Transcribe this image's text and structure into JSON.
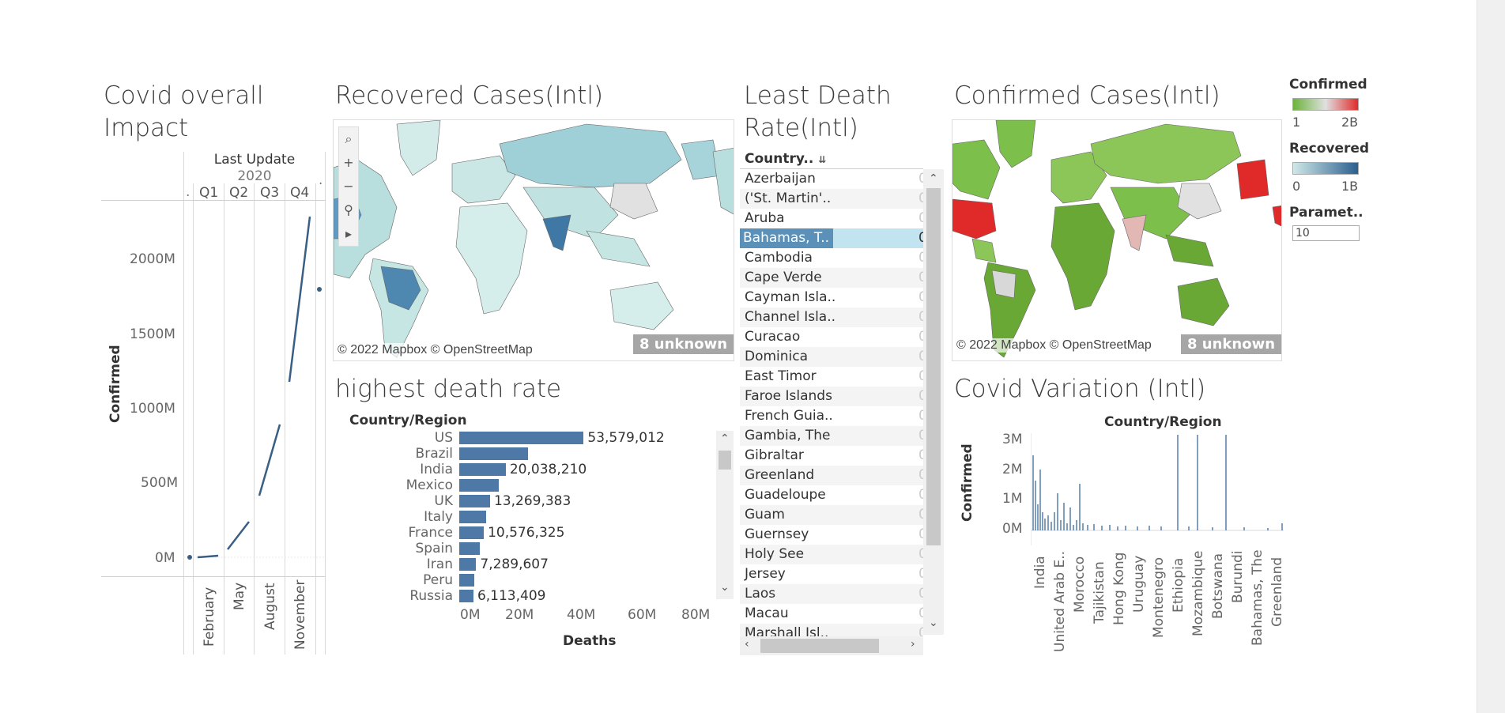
{
  "panels": {
    "overall": {
      "title_line1": "Covid overall",
      "title_line2": "Impact",
      "header": "Last Update",
      "year": "2020",
      "quarters": [
        "Q1",
        "Q2",
        "Q3",
        "Q4"
      ],
      "ylabel": "Confirmed",
      "yticks": [
        "2000M",
        "1500M",
        "1000M",
        "500M",
        "0M"
      ],
      "months": [
        "February",
        "May",
        "August",
        "November"
      ],
      "dot_labels": [
        ".",
        "."
      ]
    },
    "recovered": {
      "title": "Recovered Cases(Intl)",
      "copyright": "© 2022 Mapbox © OpenStreetMap",
      "unknown": "8 unknown",
      "tools": [
        "⌕",
        "+",
        "−",
        "⚲",
        "▸"
      ]
    },
    "death": {
      "title": "highest death rate",
      "axis_header": "Country/Region",
      "xlabel": "Deaths",
      "xticks": [
        "0M",
        "20M",
        "40M",
        "60M",
        "80M"
      ],
      "value_labels": [
        "53,579,012",
        "",
        "20,038,210",
        "",
        "13,269,383",
        "",
        "10,576,325",
        "",
        "7,289,607",
        "",
        "6,113,409"
      ]
    },
    "least": {
      "title_line1": "Least Death",
      "title_line2": "Rate(Intl)",
      "header": "Country..",
      "sort_icon": "⇊",
      "rows": [
        "Azerbaijan",
        "('St. Martin'..",
        "Aruba",
        "Bahamas, T..",
        "Cambodia",
        "Cape Verde",
        "Cayman Isla..",
        "Channel Isla..",
        "Curacao",
        "Dominica",
        "East Timor",
        "Faroe Islands",
        "French Guia..",
        "Gambia, The",
        "Gibraltar",
        "Greenland",
        "Guadeloupe",
        "Guam",
        "Guernsey",
        "Holy See",
        "Jersey",
        "Laos",
        "Macau",
        "Marshall Isl.."
      ],
      "selected_value": "0",
      "row_value": "0"
    },
    "confirmed": {
      "title": "Confirmed Cases(Intl)",
      "copyright": "© 2022 Mapbox © OpenStreetMap",
      "unknown": "8 unknown"
    },
    "legends": {
      "confirmed_title": "Confirmed",
      "confirmed_min": "1",
      "confirmed_max": "2B",
      "recovered_title": "Recovered",
      "recovered_min": "0",
      "recovered_max": "1B",
      "param_title": "Paramet..",
      "param_value": "10"
    },
    "variation": {
      "title": "Covid Variation (Intl)",
      "header": "Country/Region",
      "ylabel": "Confirmed",
      "yticks": [
        "3M",
        "2M",
        "1M",
        "0M"
      ],
      "categories": [
        "India",
        "United Arab E..",
        "Morocco",
        "Tajikistan",
        "Hong Kong",
        "Uruguay",
        "Montenegro",
        "Ethiopia",
        "Mozambique",
        "Botswana",
        "Burundi",
        "Bahamas, The",
        "Greenland"
      ]
    }
  },
  "chart_data": [
    {
      "type": "line",
      "title": "Covid overall Impact",
      "xlabel": "Last Update",
      "ylabel": "Confirmed",
      "ylim": [
        0,
        2300
      ],
      "unit": "M",
      "x": [
        "February",
        "May",
        "August",
        "November"
      ],
      "series": [
        {
          "values": [
            10,
            250,
            900,
            2300
          ]
        }
      ]
    },
    {
      "type": "bar",
      "title": "highest death rate",
      "ylabel": "Country/Region",
      "xlabel": "Deaths",
      "xlim": [
        0,
        80000000
      ],
      "categories": [
        "US",
        "Brazil",
        "India",
        "Mexico",
        "UK",
        "Italy",
        "France",
        "Spain",
        "Iran",
        "Peru",
        "Russia"
      ],
      "values": [
        53579012,
        29500000,
        20038210,
        17000000,
        13269383,
        11500000,
        10576325,
        9000000,
        7289607,
        6500000,
        6113409
      ]
    },
    {
      "type": "bar",
      "title": "Covid Variation (Intl)",
      "xlabel": "Country/Region",
      "ylabel": "Confirmed",
      "ylim": [
        0,
        3000000
      ],
      "categories": [
        "India",
        "United Arab E..",
        "Morocco",
        "Tajikistan",
        "Hong Kong",
        "Uruguay",
        "Montenegro",
        "Ethiopia",
        "Mozambique",
        "Botswana",
        "Burundi",
        "Bahamas, The",
        "Greenland"
      ]
    }
  ],
  "colors": {
    "bar": "#4e79a7",
    "recovered_scale": [
      "#cfe8e8",
      "#2b5f8f"
    ],
    "confirmed_scale": [
      "#6bb33a",
      "#e0e0e0",
      "#e12b2b"
    ]
  }
}
